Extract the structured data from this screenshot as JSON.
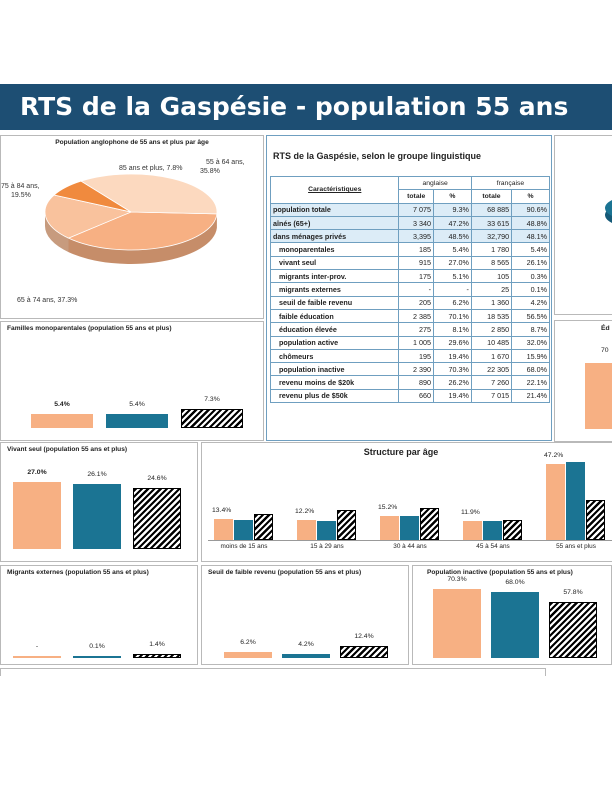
{
  "page": {
    "title": "RTS de la Gaspésie - population 55 ans"
  },
  "colors": {
    "banner": "#1d4e73",
    "anglaise": "#f7b083",
    "francaise": "#1b7493",
    "autre": "hatched black/white",
    "table_border": "#6f9fc0"
  },
  "table": {
    "title": "RTS de la Gaspésie, selon le groupe linguistique",
    "col_header": "Caractéristiques",
    "groups": [
      "anglaise",
      "française"
    ],
    "subheaders": [
      "totale",
      "%",
      "totale",
      "%"
    ],
    "rows": [
      {
        "label": "population totale",
        "a_tot": "7 075",
        "a_pct": "9.3%",
        "f_tot": "68 885",
        "f_pct": "90.6%"
      },
      {
        "label": "aînés (65+)",
        "a_tot": "3 340",
        "a_pct": "47.2%",
        "f_tot": "33 615",
        "f_pct": "48.8%"
      },
      {
        "label": "dans ménages privés",
        "a_tot": "3,395",
        "a_pct": "48.5%",
        "f_tot": "32,790",
        "f_pct": "48.1%"
      },
      {
        "label": "monoparentales",
        "a_tot": "185",
        "a_pct": "5.4%",
        "f_tot": "1 780",
        "f_pct": "5.4%"
      },
      {
        "label": "vivant seul",
        "a_tot": "915",
        "a_pct": "27.0%",
        "f_tot": "8 565",
        "f_pct": "26.1%"
      },
      {
        "label": "migrants inter-prov.",
        "a_tot": "175",
        "a_pct": "5.1%",
        "f_tot": "105",
        "f_pct": "0.3%"
      },
      {
        "label": "migrants externes",
        "a_tot": "-",
        "a_pct": "-",
        "f_tot": "25",
        "f_pct": "0.1%"
      },
      {
        "label": "seuil de faible revenu",
        "a_tot": "205",
        "a_pct": "6.2%",
        "f_tot": "1 360",
        "f_pct": "4.2%"
      },
      {
        "label": "faible éducation",
        "a_tot": "2 385",
        "a_pct": "70.1%",
        "f_tot": "18 535",
        "f_pct": "56.5%"
      },
      {
        "label": "éducation élevée",
        "a_tot": "275",
        "a_pct": "8.1%",
        "f_tot": "2 850",
        "f_pct": "8.7%"
      },
      {
        "label": "population active",
        "a_tot": "1 005",
        "a_pct": "29.6%",
        "f_tot": "10 485",
        "f_pct": "32.0%"
      },
      {
        "label": "chômeurs",
        "a_tot": "195",
        "a_pct": "19.4%",
        "f_tot": "1 670",
        "f_pct": "15.9%"
      },
      {
        "label": "population inactive",
        "a_tot": "2 390",
        "a_pct": "70.3%",
        "f_tot": "22 305",
        "f_pct": "68.0%"
      },
      {
        "label": "revenu moins de $20k",
        "a_tot": "890",
        "a_pct": "26.2%",
        "f_tot": "7 260",
        "f_pct": "22.1%"
      },
      {
        "label": "revenu plus de $50k",
        "a_tot": "660",
        "a_pct": "19.4%",
        "f_tot": "7 015",
        "f_pct": "21.4%"
      }
    ]
  },
  "partial_panels": {
    "right_edu_title": "Éd",
    "right_edu_value": "70"
  },
  "chart_data": [
    {
      "id": "pie",
      "type": "pie",
      "title": "Population anglophone de 55 ans et plus par âge",
      "slices": [
        {
          "label": "55 à 64 ans",
          "value": 35.8,
          "text": "55 à 64 ans, 35.8%",
          "color": "#fcd9bf"
        },
        {
          "label": "65 à 74 ans",
          "value": 37.3,
          "text": "65 à 74 ans, 37.3%",
          "color": "#f7b083"
        },
        {
          "label": "75 à 84 ans",
          "value": 19.5,
          "text": "75 à 84 ans, 19.5%",
          "color": "#f9c29d"
        },
        {
          "label": "85 ans et plus",
          "value": 7.8,
          "text": "85 ans et plus, 7.8%",
          "color": "#f08a3e"
        }
      ]
    },
    {
      "id": "mono",
      "type": "bar",
      "title": "Familles monoparentales (population 55 ans et plus)",
      "values": [
        5.4,
        5.4,
        7.3
      ],
      "labels": [
        "5.4%",
        "5.4%",
        "7.3%"
      ],
      "ylim": [
        0,
        30
      ]
    },
    {
      "id": "seul",
      "type": "bar",
      "title": "Vivant seul (population 55 ans et plus)",
      "values": [
        27.0,
        26.1,
        24.6
      ],
      "labels": [
        "27.0%",
        "26.1%",
        "24.6%"
      ],
      "ylim": [
        0,
        30
      ]
    },
    {
      "id": "structure",
      "type": "bar",
      "title": "Structure par âge",
      "categories": [
        "moins de 15 ans",
        "15 à 29 ans",
        "30 à 44 ans",
        "45 à 54 ans",
        "55 ans et plus"
      ],
      "series": [
        {
          "values": [
            13.4,
            12.2,
            15.2,
            11.9,
            47.2
          ],
          "labels": [
            "13.4%",
            "12.2%",
            "15.2%",
            "11.9%",
            "47.2%"
          ]
        },
        {
          "values": [
            12.2,
            11.9,
            14.8,
            12.0,
            48.8
          ],
          "labels": []
        },
        {
          "values": [
            16.5,
            18.5,
            20.0,
            12.4,
            25.0
          ],
          "labels": []
        }
      ],
      "ylim": [
        0,
        50
      ]
    },
    {
      "id": "migr",
      "type": "bar",
      "title": "Migrants externes (population 55 ans et plus)",
      "values": [
        0,
        0.1,
        1.4
      ],
      "labels": [
        "-",
        "0.1%",
        "1.4%"
      ],
      "ylim": [
        0,
        30
      ]
    },
    {
      "id": "seuil",
      "type": "bar",
      "title": "Seuil de faible revenu (population 55 ans et plus)",
      "values": [
        6.2,
        4.2,
        12.4
      ],
      "labels": [
        "6.2%",
        "4.2%",
        "12.4%"
      ],
      "ylim": [
        0,
        80
      ]
    },
    {
      "id": "inactive",
      "type": "bar",
      "title": "Population inactive (population 55 ans et plus)",
      "values": [
        70.3,
        68.0,
        57.8
      ],
      "labels": [
        "70.3%",
        "68.0%",
        "57.8%"
      ],
      "ylim": [
        0,
        80
      ]
    }
  ]
}
